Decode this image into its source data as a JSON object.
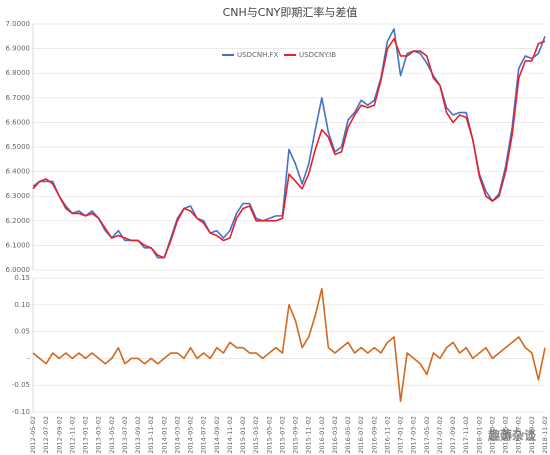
{
  "chart_data": [
    {
      "type": "line",
      "title": "CNH与CNY即期汇率与差值",
      "grid": true,
      "legend": "top",
      "ylim": [
        6,
        7
      ],
      "yticks": [
        {
          "value": 6,
          "label": "6.0000"
        },
        {
          "value": 6.1,
          "label": "6.1000"
        },
        {
          "value": 6.2,
          "label": "6.2000"
        },
        {
          "value": 6.3,
          "label": "6.3000"
        },
        {
          "value": 6.4,
          "label": "6.4000"
        },
        {
          "value": 6.5,
          "label": "6.5000"
        },
        {
          "value": 6.6,
          "label": "6.6000"
        },
        {
          "value": 6.7,
          "label": "6.7000"
        },
        {
          "value": 6.8,
          "label": "6.8000"
        },
        {
          "value": 6.9,
          "label": "6.9000"
        },
        {
          "value": 7,
          "label": "7.0000"
        }
      ],
      "series": [
        {
          "name": "USDCNH.FX",
          "color": "#4472c4",
          "values": [
            6.34,
            6.36,
            6.36,
            6.36,
            6.3,
            6.26,
            6.23,
            6.24,
            6.22,
            6.24,
            6.21,
            6.16,
            6.13,
            6.16,
            6.12,
            6.12,
            6.12,
            6.09,
            6.09,
            6.05,
            6.05,
            6.13,
            6.21,
            6.25,
            6.26,
            6.21,
            6.2,
            6.15,
            6.16,
            6.13,
            6.16,
            6.23,
            6.27,
            6.27,
            6.21,
            6.2,
            6.21,
            6.22,
            6.22,
            6.49,
            6.43,
            6.35,
            6.43,
            6.57,
            6.7,
            6.56,
            6.48,
            6.5,
            6.61,
            6.64,
            6.69,
            6.67,
            6.69,
            6.78,
            6.93,
            6.98,
            6.79,
            6.88,
            6.89,
            6.88,
            6.84,
            6.79,
            6.75,
            6.66,
            6.63,
            6.64,
            6.64,
            6.53,
            6.39,
            6.32,
            6.28,
            6.31,
            6.42,
            6.58,
            6.82,
            6.87,
            6.86,
            6.88,
            6.95
          ]
        },
        {
          "name": "USDCNY.IB",
          "color": "#e8202a",
          "values": [
            6.33,
            6.36,
            6.37,
            6.35,
            6.3,
            6.25,
            6.23,
            6.23,
            6.22,
            6.23,
            6.21,
            6.17,
            6.13,
            6.14,
            6.13,
            6.12,
            6.12,
            6.1,
            6.09,
            6.06,
            6.05,
            6.12,
            6.2,
            6.25,
            6.24,
            6.21,
            6.19,
            6.15,
            6.14,
            6.12,
            6.13,
            6.21,
            6.25,
            6.26,
            6.2,
            6.2,
            6.2,
            6.2,
            6.21,
            6.39,
            6.36,
            6.33,
            6.39,
            6.49,
            6.57,
            6.54,
            6.47,
            6.48,
            6.58,
            6.63,
            6.67,
            6.66,
            6.67,
            6.77,
            6.9,
            6.94,
            6.87,
            6.87,
            6.89,
            6.89,
            6.87,
            6.78,
            6.75,
            6.64,
            6.6,
            6.63,
            6.62,
            6.53,
            6.38,
            6.3,
            6.28,
            6.3,
            6.4,
            6.55,
            6.78,
            6.85,
            6.85,
            6.92,
            6.93
          ]
        }
      ]
    },
    {
      "type": "line",
      "grid": true,
      "ylim": [
        -0.1,
        0.15
      ],
      "yticks": [
        {
          "value": -0.1,
          "label": "-0.10"
        },
        {
          "value": -0.05,
          "label": "-0.05"
        },
        {
          "value": 0,
          "label": "-"
        },
        0.05,
        {
          "value": 0.1,
          "label": "0.10"
        },
        0.15
      ],
      "categories": [
        "2012-05-02",
        null,
        "2012-07-02",
        null,
        "2012-09-02",
        null,
        "2012-11-02",
        null,
        "2013-01-02",
        null,
        "2013-03-02",
        null,
        "2013-05-02",
        null,
        "2013-07-02",
        null,
        "2013-09-02",
        null,
        "2013-11-02",
        null,
        "2014-01-02",
        null,
        "2014-03-02",
        null,
        "2014-05-02",
        null,
        "2014-07-02",
        null,
        "2014-09-02",
        null,
        "2014-11-02",
        null,
        "2015-01-02",
        null,
        "2015-03-02",
        null,
        "2015-05-02",
        null,
        "2015-07-02",
        null,
        "2015-09-02",
        null,
        "2015-11-02",
        null,
        "2016-01-02",
        null,
        "2016-03-02",
        null,
        "2016-05-02",
        null,
        "2016-07-02",
        null,
        "2016-09-02",
        null,
        "2016-11-02",
        null,
        "2017-01-02",
        null,
        "2017-03-02",
        null,
        "2017-05-02",
        null,
        "2017-07-02",
        null,
        "2017-09-02",
        null,
        "2017-11-02",
        null,
        "2018-01-02",
        null,
        "2018-03-02",
        null,
        "2018-05-02",
        null,
        "2018-07-02",
        null,
        "2018-09-02",
        null,
        "2018-11-02"
      ],
      "series": [
        {
          "color": "#d2691e",
          "values": [
            0.01,
            0.0,
            -0.01,
            0.01,
            0.0,
            0.01,
            0.0,
            0.01,
            0.0,
            0.01,
            0.0,
            -0.01,
            0.0,
            0.02,
            -0.01,
            0.0,
            0.0,
            -0.01,
            0.0,
            -0.01,
            0.0,
            0.01,
            0.01,
            0.0,
            0.02,
            0.0,
            0.01,
            0.0,
            0.02,
            0.01,
            0.03,
            0.02,
            0.02,
            0.01,
            0.01,
            0.0,
            0.01,
            0.02,
            0.01,
            0.1,
            0.07,
            0.02,
            0.04,
            0.08,
            0.13,
            0.02,
            0.01,
            0.02,
            0.03,
            0.01,
            0.02,
            0.01,
            0.02,
            0.01,
            0.03,
            0.04,
            -0.08,
            0.01,
            0.0,
            -0.01,
            -0.03,
            0.01,
            0.0,
            0.02,
            0.03,
            0.01,
            0.02,
            0.0,
            0.01,
            0.02,
            0.0,
            0.01,
            0.02,
            0.03,
            0.04,
            0.02,
            0.01,
            -0.04,
            0.02
          ]
        }
      ]
    }
  ],
  "watermark": "趣薅杂谈"
}
